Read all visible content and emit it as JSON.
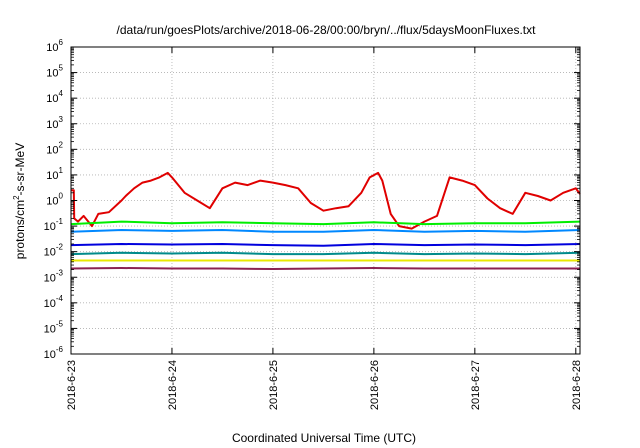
{
  "chart_data": {
    "type": "line",
    "title": "/data/run/goesPlots/archive/2018-06-28/00:00/bryn/../flux/5daysMoonFluxes.txt",
    "xlabel": "Coordinated Universal Time (UTC)",
    "ylabel": "protons/cm²-s-sr-MeV",
    "ylabel_parts": [
      "protons/cm",
      "2",
      "-s-sr-MeV"
    ],
    "y_scale": "log",
    "ylim": [
      1e-06,
      1000000.0
    ],
    "y_tick_exponents": [
      -6,
      -5,
      -4,
      -3,
      -2,
      -1,
      0,
      1,
      2,
      3,
      4,
      5,
      6
    ],
    "y_tick_base": "10",
    "xlim": [
      "2018-06-23",
      "2018-06-28 01:00"
    ],
    "x_ticks": [
      "2018-6-23",
      "2018-6-24",
      "2018-6-25",
      "2018-6-26",
      "2018-6-27",
      "2018-6-28"
    ],
    "grid": true,
    "series": [
      {
        "color": "#e00000",
        "x": [
          "2018-06-23 00:00",
          "2018-06-23 00:40",
          "2018-06-23 00:45",
          "2018-06-23 01:40",
          "2018-06-23 03:00",
          "2018-06-23 05:00",
          "2018-06-23 06:30",
          "2018-06-23 09:00",
          "2018-06-23 12:00",
          "2018-06-23 13:00",
          "2018-06-23 15:00",
          "2018-06-23 17:00",
          "2018-06-23 19:00",
          "2018-06-23 21:00",
          "2018-06-23 23:00",
          "2018-06-24 00:00",
          "2018-06-24 03:00",
          "2018-06-24 06:00",
          "2018-06-24 09:00",
          "2018-06-24 12:00",
          "2018-06-24 15:00",
          "2018-06-24 18:00",
          "2018-06-24 21:00",
          "2018-06-25 00:00",
          "2018-06-25 03:00",
          "2018-06-25 06:00",
          "2018-06-25 09:00",
          "2018-06-25 12:00",
          "2018-06-25 15:00",
          "2018-06-25 18:00",
          "2018-06-25 21:00",
          "2018-06-25 23:00",
          "2018-06-26 01:00",
          "2018-06-26 02:00",
          "2018-06-26 04:00",
          "2018-06-26 06:00",
          "2018-06-26 09:00",
          "2018-06-26 12:00",
          "2018-06-26 15:00",
          "2018-06-26 18:00",
          "2018-06-26 21:00",
          "2018-06-27 00:00",
          "2018-06-27 03:00",
          "2018-06-27 06:00",
          "2018-06-27 09:00",
          "2018-06-27 12:00",
          "2018-06-27 15:00",
          "2018-06-27 18:00",
          "2018-06-27 21:00",
          "2018-06-28 00:00",
          "2018-06-28 01:00"
        ],
        "y": [
          2.5,
          2.5,
          0.2,
          0.15,
          0.25,
          0.1,
          0.3,
          0.35,
          1.0,
          1.5,
          3,
          5,
          6,
          8,
          12,
          8,
          2,
          1,
          0.5,
          3,
          5,
          4,
          6,
          5,
          4,
          3,
          0.8,
          0.4,
          0.5,
          0.6,
          2,
          8,
          12,
          6,
          0.3,
          0.1,
          0.08,
          0.15,
          0.25,
          8,
          6,
          4,
          1.2,
          0.5,
          0.3,
          2,
          1.5,
          1,
          2,
          3,
          1.8
        ]
      },
      {
        "color": "#00ee00",
        "x": [
          "2018-06-23 00:00",
          "2018-06-23 12:00",
          "2018-06-24 00:00",
          "2018-06-24 12:00",
          "2018-06-25 00:00",
          "2018-06-25 12:00",
          "2018-06-26 00:00",
          "2018-06-26 12:00",
          "2018-06-27 00:00",
          "2018-06-27 12:00",
          "2018-06-28 01:00"
        ],
        "y": [
          0.12,
          0.15,
          0.13,
          0.14,
          0.13,
          0.12,
          0.14,
          0.12,
          0.13,
          0.13,
          0.15
        ]
      },
      {
        "color": "#0088ff",
        "x": [
          "2018-06-23 00:00",
          "2018-06-23 12:00",
          "2018-06-24 00:00",
          "2018-06-24 12:00",
          "2018-06-25 00:00",
          "2018-06-25 12:00",
          "2018-06-26 00:00",
          "2018-06-26 12:00",
          "2018-06-27 00:00",
          "2018-06-27 12:00",
          "2018-06-28 01:00"
        ],
        "y": [
          0.06,
          0.07,
          0.065,
          0.07,
          0.06,
          0.06,
          0.07,
          0.06,
          0.065,
          0.06,
          0.07
        ]
      },
      {
        "color": "#0000dd",
        "x": [
          "2018-06-23 00:00",
          "2018-06-23 12:00",
          "2018-06-24 00:00",
          "2018-06-24 12:00",
          "2018-06-25 00:00",
          "2018-06-25 12:00",
          "2018-06-26 00:00",
          "2018-06-26 12:00",
          "2018-06-27 00:00",
          "2018-06-27 12:00",
          "2018-06-28 01:00"
        ],
        "y": [
          0.018,
          0.02,
          0.019,
          0.02,
          0.018,
          0.017,
          0.02,
          0.018,
          0.019,
          0.018,
          0.02
        ]
      },
      {
        "color": "#008b8b",
        "x": [
          "2018-06-23 00:00",
          "2018-06-23 12:00",
          "2018-06-24 00:00",
          "2018-06-24 12:00",
          "2018-06-25 00:00",
          "2018-06-25 12:00",
          "2018-06-26 00:00",
          "2018-06-26 12:00",
          "2018-06-27 00:00",
          "2018-06-27 12:00",
          "2018-06-28 01:00"
        ],
        "y": [
          0.008,
          0.009,
          0.0085,
          0.009,
          0.008,
          0.008,
          0.009,
          0.008,
          0.0085,
          0.008,
          0.009
        ]
      },
      {
        "color": "#e8e800",
        "x": [
          "2018-06-23 00:00",
          "2018-06-23 12:00",
          "2018-06-24 00:00",
          "2018-06-24 12:00",
          "2018-06-25 00:00",
          "2018-06-25 12:00",
          "2018-06-26 00:00",
          "2018-06-26 12:00",
          "2018-06-27 00:00",
          "2018-06-27 12:00",
          "2018-06-28 01:00"
        ],
        "y": [
          0.0045,
          0.0045,
          0.0045,
          0.0045,
          0.0045,
          0.0045,
          0.0045,
          0.0045,
          0.0045,
          0.0045,
          0.0045
        ]
      },
      {
        "color": "#8b2252",
        "x": [
          "2018-06-23 00:00",
          "2018-06-23 12:00",
          "2018-06-24 00:00",
          "2018-06-24 12:00",
          "2018-06-25 00:00",
          "2018-06-25 12:00",
          "2018-06-26 00:00",
          "2018-06-26 12:00",
          "2018-06-27 00:00",
          "2018-06-27 12:00",
          "2018-06-28 01:00"
        ],
        "y": [
          0.0022,
          0.0023,
          0.0022,
          0.0022,
          0.0021,
          0.0022,
          0.0023,
          0.0022,
          0.0022,
          0.0022,
          0.0022
        ]
      }
    ]
  }
}
